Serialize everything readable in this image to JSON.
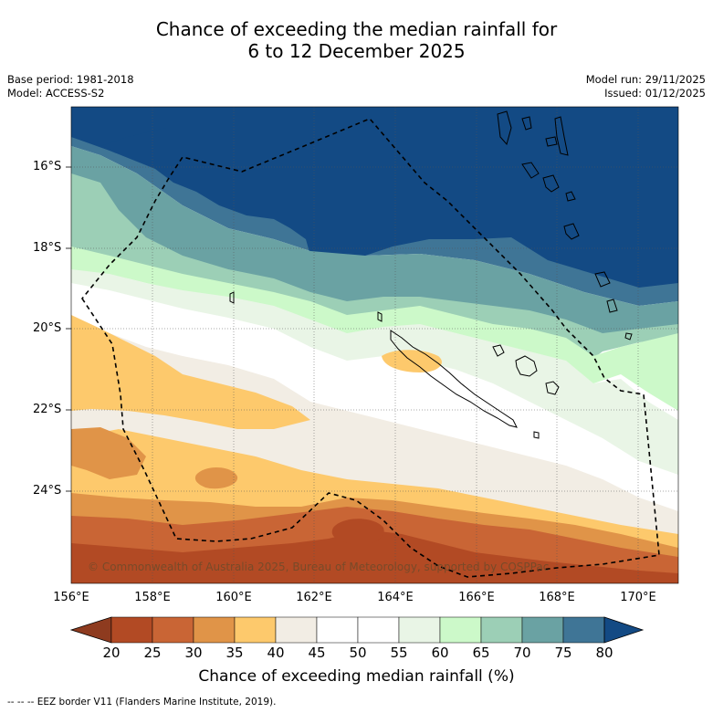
{
  "title": {
    "line1": "Chance of exceeding the median rainfall for",
    "line2": "6 to 12 December 2025"
  },
  "meta": {
    "base_period": "Base period: 1981-2018",
    "model": "Model: ACCESS-S2",
    "model_run": "Model run: 29/11/2025",
    "issued": "Issued: 01/12/2025"
  },
  "map": {
    "copyright": "© Commonwealth of Australia 2025, Bureau of Meteorology, supported by COSPPac",
    "lat_labels": [
      "16°S",
      "18°S",
      "20°S",
      "22°S",
      "24°S"
    ],
    "lon_labels": [
      "156°E",
      "158°E",
      "160°E",
      "162°E",
      "164°E",
      "166°E",
      "168°E",
      "170°E"
    ]
  },
  "colorbar": {
    "ticks": [
      "20",
      "25",
      "30",
      "35",
      "40",
      "45",
      "50",
      "55",
      "60",
      "65",
      "70",
      "75",
      "80"
    ],
    "colors": [
      "#8e3b1f",
      "#b24a24",
      "#c96535",
      "#e09448",
      "#fdc96c",
      "#f2ede4",
      "#ffffff",
      "#ffffff",
      "#e9f5e6",
      "#ccf9c9",
      "#9ccfb6",
      "#6aa2a3",
      "#3f7596",
      "#134a84"
    ],
    "title": "Chance of exceeding median rainfall (%)"
  },
  "footer": "-- -- -- EEZ border V11 (Flanders Marine Institute, 2019)."
}
